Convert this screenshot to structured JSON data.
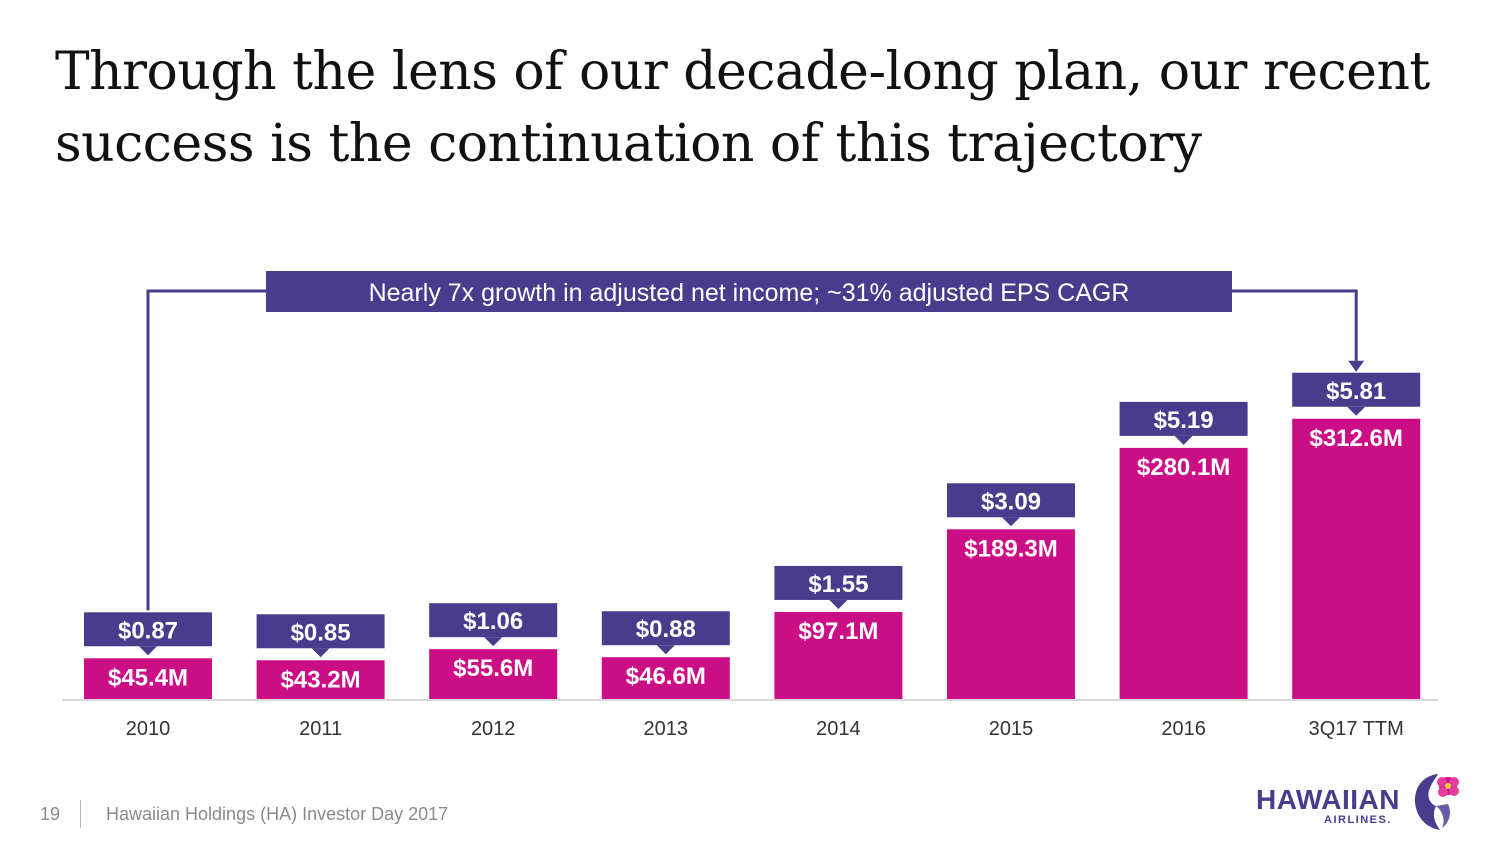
{
  "slide": {
    "title_line1": "Through the lens of our decade-long plan, our recent",
    "title_line2": "success is the continuation of this trajectory",
    "page_number": "19",
    "footer": "Hawaiian Holdings (HA) Investor Day 2017",
    "logo_text": "HAWAIIAN",
    "logo_subtext": "AIRLINES."
  },
  "colors": {
    "bar": "#cc0e86",
    "label_box": "#4a3c8c",
    "axis": "#d9d9d9",
    "tick_text": "#333333"
  },
  "chart_data": {
    "type": "bar",
    "title": "",
    "annotation": "Nearly 7x growth in adjusted net income; ~31% adjusted EPS CAGR",
    "categories": [
      "2010",
      "2011",
      "2012",
      "2013",
      "2014",
      "2015",
      "2016",
      "3Q17 TTM"
    ],
    "series": [
      {
        "name": "",
        "values": [
          45.4,
          43.2,
          55.6,
          46.6,
          97.1,
          189.3,
          280.1,
          312.6
        ]
      }
    ],
    "value_labels": [
      "$45.4M",
      "$43.2M",
      "$55.6M",
      "$46.6M",
      "$97.1M",
      "$189.3M",
      "$280.1M",
      "$312.6M"
    ],
    "eps_values": [
      0.87,
      0.85,
      1.06,
      0.88,
      1.55,
      3.09,
      5.19,
      5.81
    ],
    "eps_labels": [
      "$0.87",
      "$0.85",
      "$1.06",
      "$0.88",
      "$1.55",
      "$3.09",
      "$5.19",
      "$5.81"
    ],
    "ylim": [
      0,
      330
    ],
    "xlabel": "",
    "ylabel": "",
    "grid": false,
    "legend": "none"
  }
}
